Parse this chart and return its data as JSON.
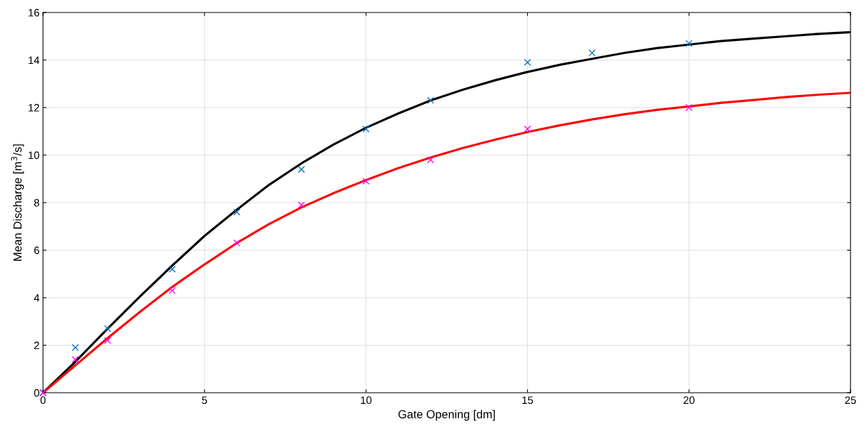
{
  "chart_data": {
    "type": "line",
    "xlabel": "Gate Opening [dm]",
    "ylabel": "Mean Discharge [m$^{3}$/s]",
    "xlim": [
      0,
      25
    ],
    "ylim": [
      0,
      16
    ],
    "xticks": [
      0,
      5,
      10,
      15,
      20,
      25
    ],
    "yticks": [
      0,
      2,
      4,
      6,
      8,
      10,
      12,
      14,
      16
    ],
    "grid": true,
    "legend": false,
    "series": [
      {
        "type": "scatter",
        "marker": "cross",
        "color": "#0072bd",
        "x": [
          0,
          1,
          2,
          4,
          6,
          8,
          10,
          12,
          15,
          17,
          20
        ],
        "values": [
          0,
          1.9,
          2.7,
          5.2,
          7.6,
          9.4,
          11.1,
          12.3,
          13.9,
          14.3,
          14.7
        ]
      },
      {
        "type": "scatter",
        "marker": "cross",
        "color": "#ff00ff",
        "x": [
          0,
          1,
          2,
          4,
          6,
          8,
          10,
          12,
          15,
          20
        ],
        "values": [
          0,
          1.4,
          2.2,
          4.3,
          6.3,
          7.9,
          8.9,
          9.8,
          11.1,
          12.0
        ]
      },
      {
        "marker": "none",
        "color": "#000000",
        "x": [
          0,
          1,
          2,
          3,
          4,
          5,
          6,
          7,
          8,
          9,
          10,
          11,
          12,
          13,
          14,
          15,
          16,
          17,
          18,
          19,
          20,
          21,
          22,
          23,
          24,
          25
        ],
        "values": [
          0,
          1.3,
          2.7,
          4.05,
          5.35,
          6.6,
          7.7,
          8.75,
          9.65,
          10.45,
          11.15,
          11.75,
          12.3,
          12.75,
          13.15,
          13.5,
          13.8,
          14.05,
          14.3,
          14.5,
          14.65,
          14.8,
          14.9,
          15.0,
          15.1,
          15.17
        ]
      },
      {
        "marker": "none",
        "color": "#ff0000",
        "x": [
          0,
          1,
          2,
          3,
          4,
          5,
          6,
          7,
          8,
          9,
          10,
          11,
          12,
          13,
          14,
          15,
          16,
          17,
          18,
          19,
          20,
          21,
          22,
          23,
          24,
          25
        ],
        "values": [
          0,
          1.15,
          2.3,
          3.4,
          4.45,
          5.4,
          6.3,
          7.1,
          7.8,
          8.4,
          8.95,
          9.45,
          9.9,
          10.3,
          10.65,
          10.97,
          11.25,
          11.5,
          11.72,
          11.9,
          12.05,
          12.2,
          12.32,
          12.44,
          12.54,
          12.62
        ]
      }
    ]
  }
}
